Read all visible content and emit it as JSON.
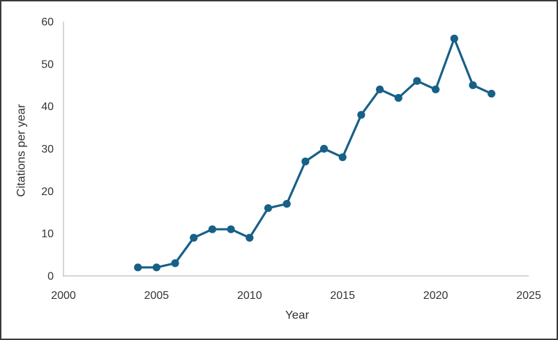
{
  "figure": {
    "background_color": "#ffffff",
    "border_color": "#3a3a3a",
    "axis_line_color": "#c8c8c8",
    "text_color": "#333333"
  },
  "chart_data": {
    "type": "line",
    "title": "",
    "xlabel": "Year",
    "ylabel": "Citations per year",
    "series": [
      {
        "name": "Citations per year",
        "x": [
          2004,
          2005,
          2006,
          2007,
          2008,
          2009,
          2010,
          2011,
          2012,
          2013,
          2014,
          2015,
          2016,
          2017,
          2018,
          2019,
          2020,
          2021,
          2022,
          2023
        ],
        "values": [
          2,
          2,
          3,
          9,
          11,
          11,
          9,
          16,
          17,
          27,
          30,
          28,
          38,
          44,
          42,
          46,
          44,
          56,
          45,
          43
        ],
        "color": "#176087",
        "marker": "circle"
      }
    ],
    "xlim": [
      2000,
      2025
    ],
    "ylim": [
      0,
      60
    ],
    "x_ticks": [
      2000,
      2005,
      2010,
      2015,
      2020,
      2025
    ],
    "y_ticks": [
      0,
      10,
      20,
      30,
      40,
      50,
      60
    ],
    "grid": false,
    "legend": false
  }
}
